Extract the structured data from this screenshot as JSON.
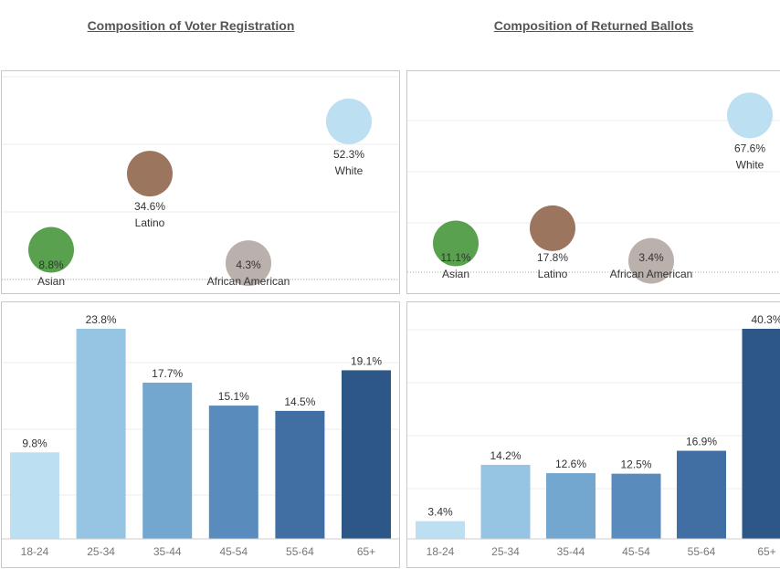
{
  "titles": {
    "left": "Composition of Voter Registration",
    "right": "Composition of Returned Ballots"
  },
  "colors": {
    "asian": "#59a14f",
    "latino": "#9c755f",
    "african_american": "#bab0ac",
    "white": "#bcdff1",
    "bars": [
      "#bcdff1",
      "#96c4e3",
      "#74a7cf",
      "#5a8bbd",
      "#416fa3",
      "#2c5787"
    ]
  },
  "chart_data": [
    {
      "type": "scatter",
      "title": "Composition of Voter Registration",
      "points": [
        {
          "label": "Asian",
          "value": "8.8%",
          "pct": 8.8,
          "color": "#59a14f"
        },
        {
          "label": "Latino",
          "value": "34.6%",
          "pct": 34.6,
          "color": "#9c755f"
        },
        {
          "label": "African American",
          "value": "4.3%",
          "pct": 4.3,
          "color": "#bab0ac"
        },
        {
          "label": "White",
          "value": "52.3%",
          "pct": 52.3,
          "color": "#bcdff1"
        }
      ],
      "ylim": [
        0,
        60
      ],
      "grid": true
    },
    {
      "type": "scatter",
      "title": "Composition of Returned Ballots",
      "points": [
        {
          "label": "Asian",
          "value": "11.1%",
          "pct": 11.1,
          "color": "#59a14f"
        },
        {
          "label": "Latino",
          "value": "17.8%",
          "pct": 17.8,
          "color": "#9c755f"
        },
        {
          "label": "African American",
          "value": "3.4%",
          "pct": 3.4,
          "color": "#bab0ac"
        },
        {
          "label": "White",
          "value": "67.6%",
          "pct": 67.6,
          "color": "#bcdff1"
        }
      ],
      "ylim": [
        0,
        75
      ],
      "grid": true
    },
    {
      "type": "bar",
      "categories": [
        "18-24",
        "25-34",
        "35-44",
        "45-54",
        "55-64",
        "65+"
      ],
      "values": [
        9.8,
        23.8,
        17.7,
        15.1,
        14.5,
        19.1
      ],
      "labels": [
        "9.8%",
        "23.8%",
        "17.7%",
        "15.1%",
        "14.5%",
        "19.1%"
      ],
      "ylim": [
        0,
        30
      ],
      "grid": true
    },
    {
      "type": "bar",
      "categories": [
        "18-24",
        "25-34",
        "35-44",
        "45-54",
        "55-64",
        "65+"
      ],
      "values": [
        3.4,
        14.2,
        12.6,
        12.5,
        16.9,
        40.3
      ],
      "labels": [
        "3.4%",
        "14.2%",
        "12.6%",
        "12.5%",
        "16.9%",
        "40.3%"
      ],
      "ylim": [
        0,
        50
      ],
      "grid": true
    }
  ]
}
